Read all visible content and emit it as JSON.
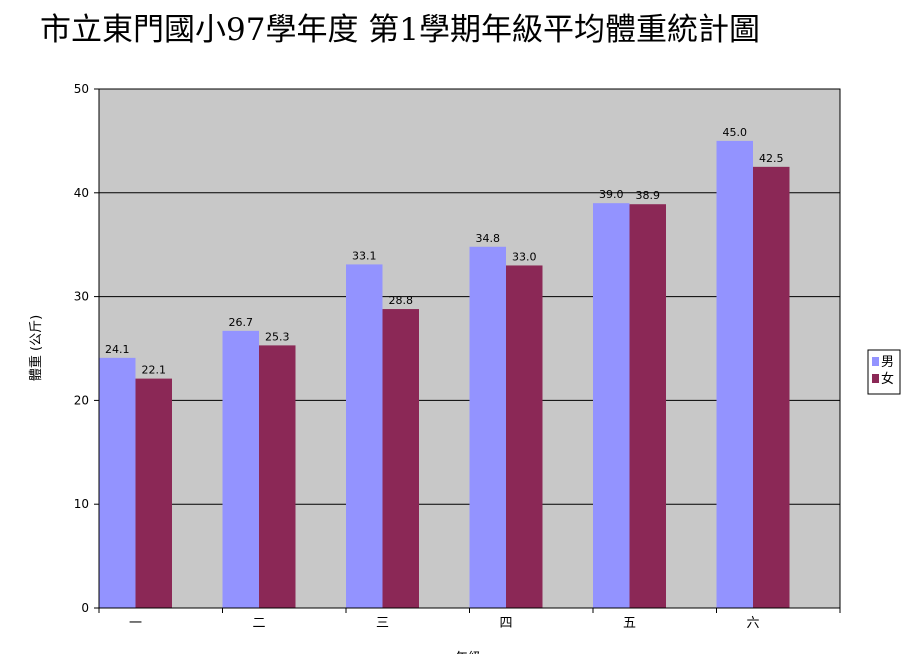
{
  "chart_data": {
    "type": "bar",
    "title": "市立東門國小97學年度 第1學期年級平均體重統計圖",
    "xlabel": "年級",
    "ylabel": "體重 (公斤)",
    "ylim": [
      0,
      50
    ],
    "yticks": [
      0,
      10,
      20,
      30,
      40,
      50
    ],
    "grid": true,
    "legend": "right",
    "categories": [
      "一",
      "二",
      "三",
      "四",
      "五",
      "六"
    ],
    "series": [
      {
        "name": "男",
        "color": "#9393ff",
        "values": [
          24.1,
          26.7,
          33.1,
          34.8,
          39.0,
          45.0
        ],
        "labels": [
          "24.1",
          "26.7",
          "33.1",
          "34.8",
          "39.0",
          "45.0"
        ]
      },
      {
        "name": "女",
        "color": "#8b2856",
        "values": [
          22.1,
          25.3,
          28.8,
          33.0,
          38.9,
          42.5
        ],
        "labels": [
          "22.1",
          "25.3",
          "28.8",
          "33.0",
          "38.9",
          "42.5"
        ]
      }
    ],
    "plot_background": "#c8c8c8"
  }
}
